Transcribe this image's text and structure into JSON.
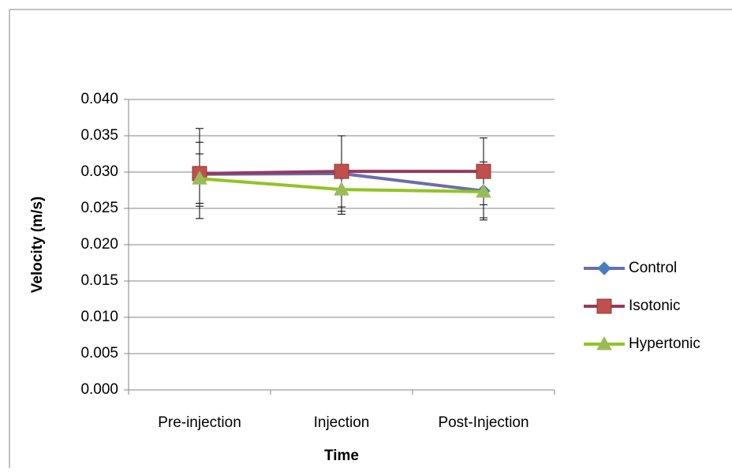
{
  "chart_data": {
    "type": "line",
    "x_label": "Time",
    "y_label": "Velocity  (m/s)",
    "categories": [
      "Pre-injection",
      "Injection",
      "Post-Injection"
    ],
    "series": [
      {
        "name": "Control",
        "color": "#6a6ea8",
        "marker_color": "#4a7ebb",
        "marker": "diamond",
        "values": [
          0.0297,
          0.0298,
          0.0274
        ],
        "errors": [
          0.0044,
          0.0052,
          0.004
        ]
      },
      {
        "name": "Isotonic",
        "color": "#963a5e",
        "marker_color": "#c0504d",
        "marker": "square",
        "values": [
          0.0298,
          0.0301,
          0.0301
        ],
        "errors": [
          0.0062,
          0.0049,
          0.0046
        ]
      },
      {
        "name": "Hypertonic",
        "color": "#92c422",
        "marker_color": "#9bbb59",
        "marker": "triangle",
        "values": [
          0.0291,
          0.0276,
          0.0273
        ],
        "errors": [
          0.0034,
          0.0034,
          0.0036
        ]
      }
    ],
    "ylim": [
      0,
      0.04
    ],
    "yticks": [
      {
        "value": 0,
        "label": "0.000"
      },
      {
        "value": 0.005,
        "label": "0.005"
      },
      {
        "value": 0.01,
        "label": "0.010"
      },
      {
        "value": 0.015,
        "label": "0.015"
      },
      {
        "value": 0.02,
        "label": "0.020"
      },
      {
        "value": 0.025,
        "label": "0.025"
      },
      {
        "value": 0.03,
        "label": "0.030"
      },
      {
        "value": 0.035,
        "label": "0.035"
      },
      {
        "value": 0.04,
        "label": "0.040"
      }
    ],
    "grid": true,
    "legend": "right"
  }
}
